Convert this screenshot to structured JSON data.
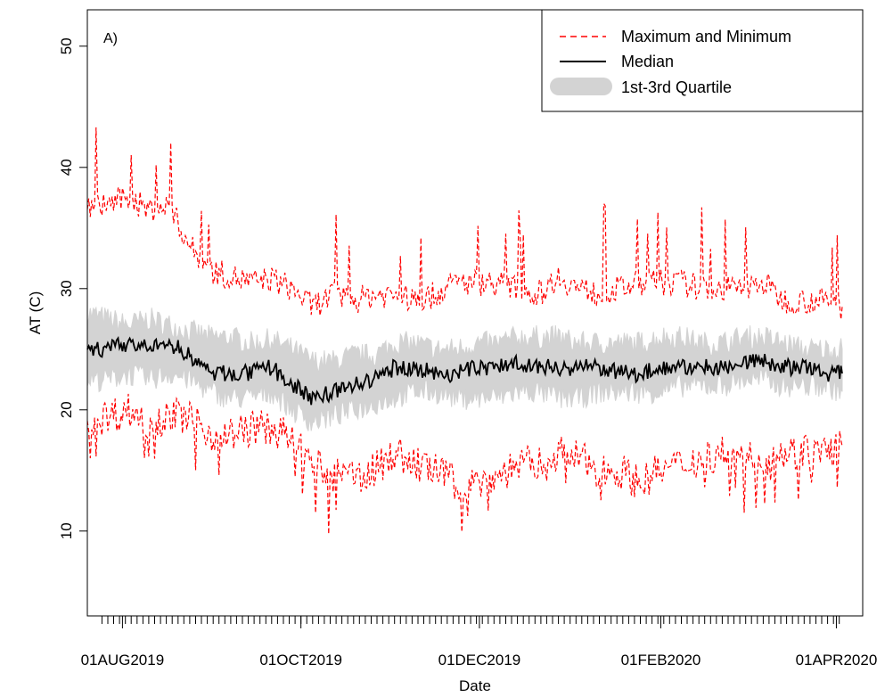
{
  "chart_data": {
    "type": "line",
    "panel_label": "A)",
    "xlabel": "Date",
    "ylabel": "AT (C)",
    "ylim": [
      3,
      53
    ],
    "xlim": [
      "2019-07-20",
      "2020-04-10"
    ],
    "grid": false,
    "legend_position": "top-right",
    "x_ticks": [
      {
        "date": "2019-08-01",
        "label": "01AUG2019"
      },
      {
        "date": "2019-10-01",
        "label": "01OCT2019"
      },
      {
        "date": "2019-12-01",
        "label": "01DEC2019"
      },
      {
        "date": "2020-02-01",
        "label": "01FEB2020"
      },
      {
        "date": "2020-04-01",
        "label": "01APR2020"
      }
    ],
    "y_ticks": [
      10,
      20,
      30,
      40,
      50
    ],
    "legend": [
      {
        "label": "Maximum and Minimum",
        "color": "#ff0000",
        "style": "dashed"
      },
      {
        "label": "Median",
        "color": "#000000",
        "style": "solid"
      },
      {
        "label": "1st-3rd Quartile",
        "color": "#d3d3d3",
        "style": "band"
      }
    ],
    "x": [
      "2019-07-20",
      "2019-07-27",
      "2019-08-03",
      "2019-08-10",
      "2019-08-17",
      "2019-08-24",
      "2019-08-31",
      "2019-09-07",
      "2019-09-14",
      "2019-09-21",
      "2019-09-28",
      "2019-10-05",
      "2019-10-12",
      "2019-10-19",
      "2019-10-26",
      "2019-11-02",
      "2019-11-09",
      "2019-11-16",
      "2019-11-23",
      "2019-11-30",
      "2019-12-07",
      "2019-12-14",
      "2019-12-21",
      "2019-12-28",
      "2020-01-04",
      "2020-01-11",
      "2020-01-18",
      "2020-01-25",
      "2020-02-01",
      "2020-02-08",
      "2020-02-15",
      "2020-02-22",
      "2020-02-29",
      "2020-03-07",
      "2020-03-14",
      "2020-03-21",
      "2020-03-28",
      "2020-04-03"
    ],
    "series": [
      {
        "name": "Maximum",
        "color": "#ff0000",
        "values": [
          36.5,
          37.0,
          37.5,
          36.5,
          36.8,
          33.5,
          31.5,
          31.0,
          30.5,
          30.8,
          30.0,
          28.5,
          29.5,
          29.0,
          29.5,
          29.5,
          29.0,
          29.5,
          30.5,
          30.5,
          30.5,
          30.0,
          29.5,
          31.0,
          30.0,
          29.5,
          30.0,
          30.5,
          30.5,
          30.5,
          30.0,
          30.0,
          30.0,
          30.5,
          29.0,
          29.0,
          29.0,
          28.5
        ]
      },
      {
        "name": "Q3",
        "color": "#d3d3d3",
        "values": [
          28.0,
          27.5,
          27.0,
          27.5,
          27.0,
          26.5,
          26.0,
          26.0,
          25.5,
          25.8,
          25.0,
          24.0,
          24.0,
          24.5,
          24.5,
          25.5,
          25.5,
          25.0,
          25.0,
          25.5,
          25.5,
          26.0,
          26.0,
          26.0,
          25.5,
          25.5,
          25.5,
          25.5,
          26.0,
          26.0,
          25.5,
          25.5,
          26.0,
          26.0,
          25.5,
          25.0,
          25.0,
          25.0
        ]
      },
      {
        "name": "Median",
        "color": "#000000",
        "values": [
          25.0,
          25.0,
          25.5,
          25.0,
          25.5,
          24.5,
          23.0,
          23.0,
          23.0,
          23.5,
          22.0,
          21.0,
          21.5,
          22.0,
          22.5,
          23.5,
          23.5,
          23.0,
          23.0,
          23.5,
          23.5,
          24.0,
          23.5,
          23.5,
          23.5,
          23.5,
          23.0,
          23.0,
          23.5,
          23.5,
          23.5,
          23.5,
          24.0,
          24.0,
          23.5,
          23.5,
          23.0,
          23.0
        ]
      },
      {
        "name": "Q1",
        "color": "#d3d3d3",
        "values": [
          22.5,
          22.5,
          23.0,
          22.5,
          23.0,
          22.5,
          21.5,
          21.0,
          21.0,
          21.5,
          20.0,
          19.0,
          19.5,
          20.0,
          20.5,
          21.0,
          21.5,
          21.5,
          21.0,
          21.0,
          21.0,
          21.5,
          21.5,
          21.0,
          21.0,
          21.5,
          21.5,
          21.5,
          21.5,
          22.0,
          22.0,
          22.0,
          22.5,
          22.5,
          22.0,
          22.0,
          22.0,
          21.5
        ]
      },
      {
        "name": "Minimum",
        "color": "#ff0000",
        "values": [
          19.0,
          19.5,
          20.0,
          19.0,
          19.5,
          19.5,
          18.0,
          18.0,
          18.5,
          18.5,
          17.5,
          15.5,
          14.5,
          14.5,
          15.0,
          16.5,
          15.5,
          15.0,
          14.0,
          14.0,
          14.5,
          15.5,
          15.5,
          16.5,
          16.0,
          15.0,
          15.0,
          14.0,
          15.0,
          15.5,
          16.0,
          16.5,
          16.0,
          16.0,
          16.5,
          16.5,
          16.5,
          17.0
        ]
      }
    ]
  }
}
